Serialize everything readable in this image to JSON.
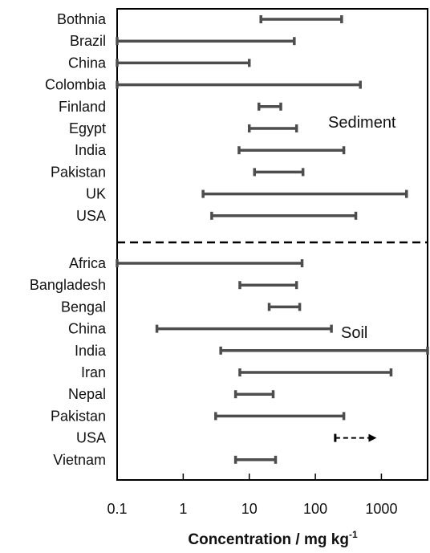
{
  "chart_data": {
    "type": "range",
    "xscale": "log",
    "xlim": [
      0.1,
      5000
    ],
    "xticks": [
      "0.1",
      "1",
      "10",
      "100",
      "1000"
    ],
    "xlabel": "Concentration / mg kg",
    "xlabel_sup": "-1",
    "bar_color": "#4d4d4d",
    "groups": [
      {
        "name": "Sediment",
        "items": [
          {
            "label": "Bothnia",
            "min": 15,
            "max": 250
          },
          {
            "label": "Brazil",
            "min": 0.1,
            "max": 48
          },
          {
            "label": "China",
            "min": 0.1,
            "max": 10
          },
          {
            "label": "Colombia",
            "min": 0.1,
            "max": 480
          },
          {
            "label": "Finland",
            "min": 14,
            "max": 30
          },
          {
            "label": "Egypt",
            "min": 10,
            "max": 52
          },
          {
            "label": "India",
            "min": 7,
            "max": 270
          },
          {
            "label": "Pakistan",
            "min": 12,
            "max": 65
          },
          {
            "label": "UK",
            "min": 2,
            "max": 2400
          },
          {
            "label": "USA",
            "min": 2.7,
            "max": 410
          }
        ]
      },
      {
        "name": "Soil",
        "items": [
          {
            "label": "Africa",
            "min": 0.1,
            "max": 63
          },
          {
            "label": "Bangladesh",
            "min": 7.2,
            "max": 52
          },
          {
            "label": "Bengal",
            "min": 20,
            "max": 58
          },
          {
            "label": "China",
            "min": 0.4,
            "max": 175
          },
          {
            "label": "India",
            "min": 3.7,
            "max": 5000
          },
          {
            "label": "Iran",
            "min": 7.2,
            "max": 1400
          },
          {
            "label": "Nepal",
            "min": 6.2,
            "max": 23
          },
          {
            "label": "Pakistan",
            "min": 3.1,
            "max": 270
          },
          {
            "label": "USA",
            "min": 200,
            "max": 800,
            "open_ended": true
          },
          {
            "label": "Vietnam",
            "min": 6.2,
            "max": 25
          }
        ]
      }
    ]
  }
}
